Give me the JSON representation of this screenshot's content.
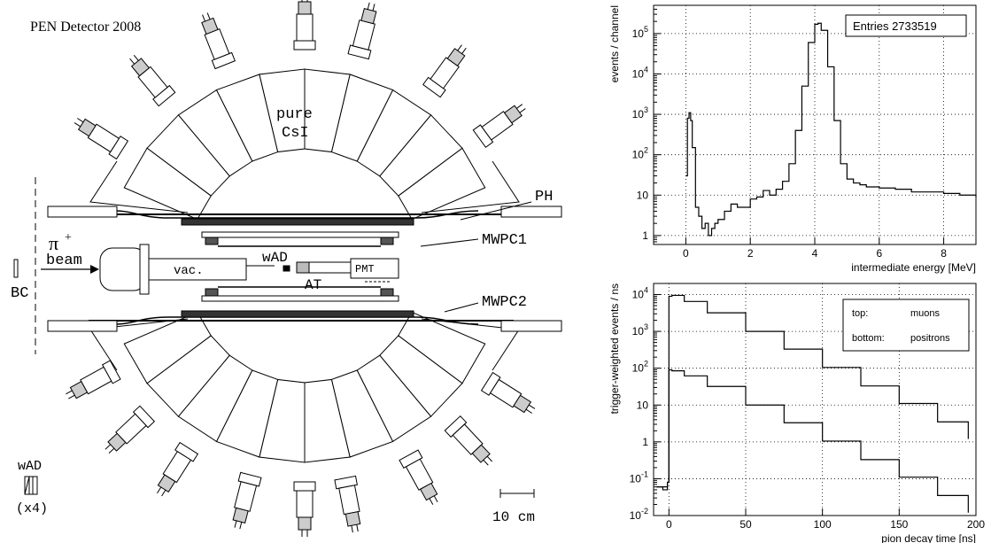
{
  "detector": {
    "title": "PEN Detector 2008",
    "labels": {
      "pure": "pure",
      "csi": "CsI",
      "ph": "PH",
      "mwpc1": "MWPC1",
      "mwpc2": "MWPC2",
      "pi_plus": "π",
      "pi_sup": "+",
      "beam": "beam",
      "vac": "vac.",
      "wad": "wAD",
      "at": "AT",
      "pmt": "PMT",
      "bc": "BC",
      "wad_legend": "wAD",
      "wad_count": "(x4)",
      "scale": "10 cm"
    }
  },
  "chart_data": [
    {
      "type": "line",
      "step": true,
      "xlabel": "intermediate energy  [MeV]",
      "ylabel": "events / channel",
      "xlim": [
        -1,
        9
      ],
      "ylim": [
        0.6,
        500000
      ],
      "yscale": "log",
      "grid": true,
      "xticks": [
        "0",
        "2",
        "4",
        "6",
        "8"
      ],
      "yticks": [
        "1",
        "10",
        "10^2",
        "10^3",
        "10^4",
        "10^5"
      ],
      "legend": "top-right",
      "annotation": "Entries  2733519",
      "x": [
        0.0,
        0.05,
        0.1,
        0.15,
        0.2,
        0.3,
        0.4,
        0.5,
        0.6,
        0.7,
        0.8,
        0.9,
        1.0,
        1.2,
        1.4,
        1.6,
        1.8,
        2.0,
        2.2,
        2.4,
        2.6,
        2.8,
        3.0,
        3.2,
        3.4,
        3.6,
        3.8,
        4.0,
        4.1,
        4.2,
        4.4,
        4.6,
        4.8,
        5.0,
        5.2,
        5.4,
        5.6,
        6.0,
        6.5,
        7.0,
        7.5,
        8.0,
        8.5,
        9.0
      ],
      "y": [
        30,
        800,
        1100,
        700,
        150,
        5,
        3,
        1.5,
        2,
        1,
        1.5,
        2,
        2.5,
        4,
        6,
        5,
        5,
        8,
        9,
        13,
        10,
        14,
        22,
        60,
        400,
        5000,
        60000,
        170000,
        180000,
        120000,
        15000,
        700,
        60,
        25,
        20,
        18,
        16,
        15,
        14,
        12,
        12,
        11,
        10,
        9
      ]
    },
    {
      "type": "line",
      "step": true,
      "xlabel": "pion decay time  [ns]",
      "ylabel": "trigger-weighted events / ns",
      "xlim": [
        -10,
        200
      ],
      "ylim": [
        0.01,
        20000
      ],
      "yscale": "log",
      "grid": true,
      "xticks": [
        "0",
        "50",
        "100",
        "150",
        "200"
      ],
      "yticks": [
        "10^-2",
        "10^-1",
        "1",
        "10",
        "10^2",
        "10^3",
        "10^4"
      ],
      "legend": "top-right",
      "legend_entries": [
        [
          "top:",
          "muons"
        ],
        [
          "bottom:",
          "positrons"
        ]
      ],
      "series": [
        {
          "name": "muons",
          "x": [
            -8,
            -4,
            -1,
            0,
            2,
            10,
            25,
            50,
            75,
            100,
            125,
            150,
            175,
            195
          ],
          "y": [
            0.06,
            0.06,
            0.08,
            9000,
            9500,
            6500,
            3200,
            1000,
            330,
            105,
            33,
            11,
            3.5,
            1.2
          ]
        },
        {
          "name": "positrons",
          "x": [
            -8,
            -4,
            -1,
            0,
            2,
            10,
            25,
            50,
            75,
            100,
            125,
            150,
            175,
            195
          ],
          "y": [
            0.06,
            0.05,
            0.08,
            90,
            85,
            62,
            32,
            10,
            3.3,
            1.05,
            0.33,
            0.11,
            0.035,
            0.012
          ]
        }
      ]
    }
  ]
}
